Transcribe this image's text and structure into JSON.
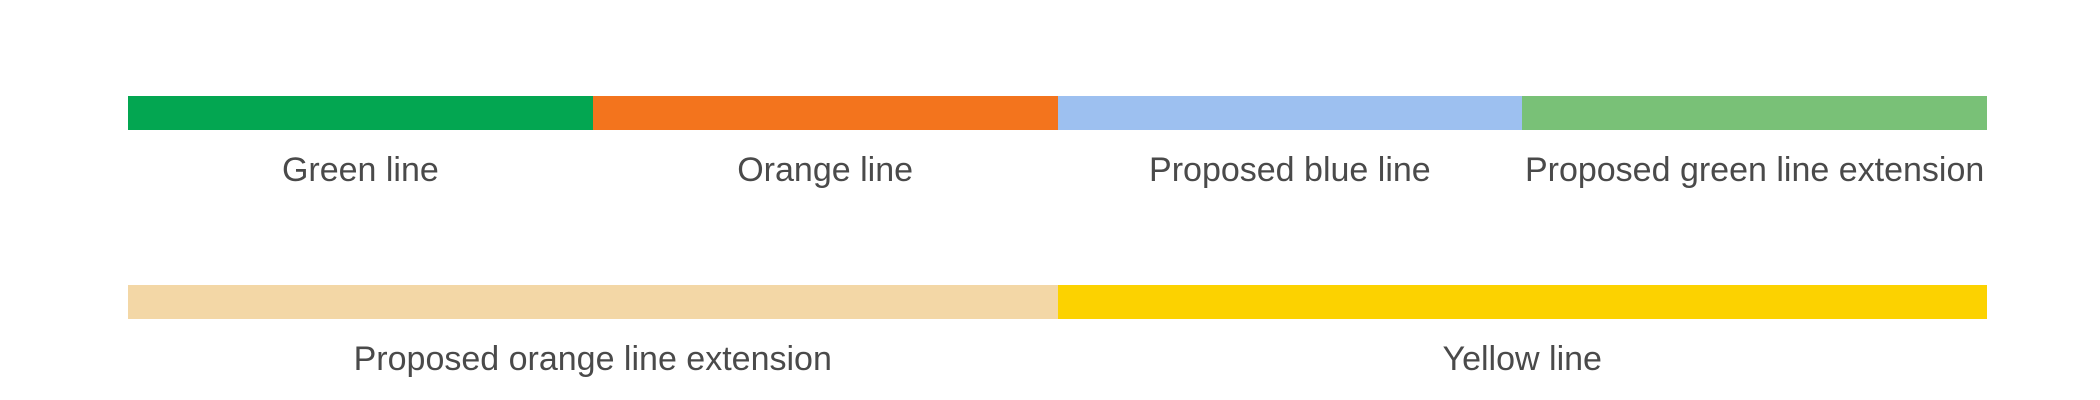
{
  "legend": {
    "row1": [
      {
        "label": "Green line",
        "color": "#03a651"
      },
      {
        "label": "Orange line",
        "color": "#f3741d"
      },
      {
        "label": "Proposed blue line",
        "color": "#9dc0f0"
      },
      {
        "label": "Proposed green line extension",
        "color": "#79c177"
      }
    ],
    "row2": [
      {
        "label": "Proposed orange line extension",
        "color": "#f3d7a6"
      },
      {
        "label": "Yellow line",
        "color": "#fcd200"
      }
    ]
  }
}
